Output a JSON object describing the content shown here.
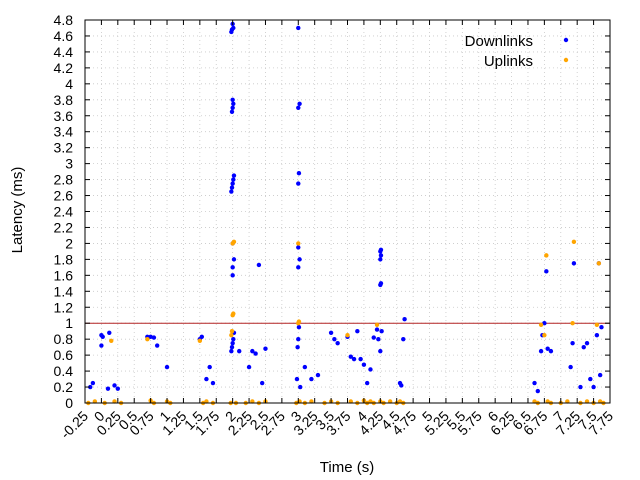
{
  "chart_data": {
    "type": "scatter",
    "title": "",
    "xlabel": "Time (s)",
    "ylabel": "Latency (ms)",
    "xlim": [
      -0.25,
      7.75
    ],
    "ylim": [
      0,
      4.8
    ],
    "x_ticks": [
      "-0.25",
      "0",
      "0.25",
      "0.5",
      "0.75",
      "1",
      "1.25",
      "1.5",
      "1.75",
      "2",
      "2.25",
      "2.5",
      "2.75",
      "3",
      "3.25",
      "3.5",
      "3.75",
      "4",
      "4.25",
      "4.5",
      "4.75",
      "5",
      "5.25",
      "5.5",
      "5.75",
      "6",
      "6.25",
      "6.5",
      "6.75",
      "7",
      "7.25",
      "7.5",
      "7.75"
    ],
    "y_ticks": [
      "0",
      "0.2",
      "0.4",
      "0.6",
      "0.8",
      "1",
      "1.2",
      "1.4",
      "1.6",
      "1.8",
      "2",
      "2.2",
      "2.4",
      "2.6",
      "2.8",
      "3",
      "3.2",
      "3.4",
      "3.6",
      "3.8",
      "4",
      "4.2",
      "4.4",
      "4.6",
      "4.8"
    ],
    "grid": true,
    "legend_position": "top-right",
    "reference_line": {
      "y": 1.0,
      "color": "#b22222"
    },
    "series": [
      {
        "name": "Downlinks",
        "color": "#0000ff",
        "points": [
          [
            -0.17,
            0.2
          ],
          [
            -0.13,
            0.25
          ],
          [
            0.0,
            0.72
          ],
          [
            0.0,
            0.85
          ],
          [
            0.02,
            0.83
          ],
          [
            0.1,
            0.18
          ],
          [
            0.12,
            0.88
          ],
          [
            0.2,
            0.22
          ],
          [
            0.25,
            0.18
          ],
          [
            0.7,
            0.83
          ],
          [
            0.75,
            0.83
          ],
          [
            0.8,
            0.82
          ],
          [
            0.85,
            0.72
          ],
          [
            1.0,
            0.45
          ],
          [
            1.5,
            0.8
          ],
          [
            1.53,
            0.83
          ],
          [
            1.6,
            0.3
          ],
          [
            1.65,
            0.45
          ],
          [
            1.7,
            0.25
          ],
          [
            1.98,
            0.65
          ],
          [
            1.99,
            0.7
          ],
          [
            2.0,
            0.75
          ],
          [
            2.01,
            0.8
          ],
          [
            2.02,
            0.88
          ],
          [
            2.0,
            1.6
          ],
          [
            2.0,
            1.7
          ],
          [
            2.02,
            1.8
          ],
          [
            2.0,
            2.0
          ],
          [
            1.98,
            2.65
          ],
          [
            1.99,
            2.7
          ],
          [
            2.0,
            2.75
          ],
          [
            2.01,
            2.8
          ],
          [
            2.02,
            2.85
          ],
          [
            1.99,
            3.65
          ],
          [
            2.0,
            3.7
          ],
          [
            2.01,
            3.75
          ],
          [
            2.0,
            3.8
          ],
          [
            1.98,
            4.65
          ],
          [
            1.99,
            4.68
          ],
          [
            2.01,
            4.7
          ],
          [
            2.0,
            4.75
          ],
          [
            2.1,
            0.65
          ],
          [
            2.25,
            0.45
          ],
          [
            2.3,
            0.65
          ],
          [
            2.35,
            0.62
          ],
          [
            2.4,
            1.73
          ],
          [
            2.45,
            0.25
          ],
          [
            2.5,
            0.68
          ],
          [
            2.98,
            0.3
          ],
          [
            2.99,
            0.7
          ],
          [
            3.0,
            0.8
          ],
          [
            3.01,
            0.95
          ],
          [
            3.0,
            1.7
          ],
          [
            3.02,
            1.8
          ],
          [
            3.0,
            1.95
          ],
          [
            3.0,
            2.75
          ],
          [
            3.01,
            2.88
          ],
          [
            3.0,
            3.7
          ],
          [
            3.02,
            3.75
          ],
          [
            3.0,
            4.7
          ],
          [
            3.03,
            0.2
          ],
          [
            3.1,
            0.45
          ],
          [
            3.2,
            0.3
          ],
          [
            3.3,
            0.35
          ],
          [
            3.5,
            0.88
          ],
          [
            3.55,
            0.8
          ],
          [
            3.6,
            0.75
          ],
          [
            3.75,
            0.83
          ],
          [
            3.8,
            0.58
          ],
          [
            3.85,
            0.55
          ],
          [
            3.9,
            0.9
          ],
          [
            3.95,
            0.55
          ],
          [
            4.0,
            0.48
          ],
          [
            4.05,
            0.25
          ],
          [
            4.1,
            0.42
          ],
          [
            4.15,
            0.82
          ],
          [
            4.2,
            0.92
          ],
          [
            4.22,
            0.8
          ],
          [
            4.25,
            0.65
          ],
          [
            4.27,
            0.9
          ],
          [
            4.25,
            1.48
          ],
          [
            4.26,
            1.5
          ],
          [
            4.25,
            1.8
          ],
          [
            4.26,
            1.85
          ],
          [
            4.25,
            1.9
          ],
          [
            4.26,
            1.92
          ],
          [
            4.55,
            0.25
          ],
          [
            4.57,
            0.22
          ],
          [
            4.6,
            0.8
          ],
          [
            4.62,
            1.05
          ],
          [
            6.6,
            0.25
          ],
          [
            6.65,
            0.15
          ],
          [
            6.7,
            0.65
          ],
          [
            6.72,
            0.85
          ],
          [
            6.75,
            1.0
          ],
          [
            6.78,
            1.65
          ],
          [
            6.8,
            0.68
          ],
          [
            6.85,
            0.65
          ],
          [
            7.15,
            0.45
          ],
          [
            7.18,
            0.75
          ],
          [
            7.2,
            1.75
          ],
          [
            7.3,
            0.2
          ],
          [
            7.35,
            0.7
          ],
          [
            7.4,
            0.75
          ],
          [
            7.45,
            0.3
          ],
          [
            7.5,
            0.2
          ],
          [
            7.55,
            0.85
          ],
          [
            7.58,
            1.75
          ],
          [
            7.6,
            0.35
          ],
          [
            7.62,
            0.95
          ]
        ]
      },
      {
        "name": "Uplinks",
        "color": "#ffa500",
        "points": [
          [
            -0.2,
            0.0
          ],
          [
            -0.1,
            0.02
          ],
          [
            0.05,
            0.0
          ],
          [
            0.15,
            0.78
          ],
          [
            0.2,
            0.02
          ],
          [
            0.3,
            0.0
          ],
          [
            0.7,
            0.8
          ],
          [
            0.75,
            0.03
          ],
          [
            0.8,
            0.0
          ],
          [
            1.0,
            0.02
          ],
          [
            1.05,
            0.0
          ],
          [
            1.5,
            0.78
          ],
          [
            1.55,
            0.0
          ],
          [
            1.6,
            0.02
          ],
          [
            1.7,
            0.0
          ],
          [
            1.97,
            0.0
          ],
          [
            1.98,
            0.85
          ],
          [
            1.99,
            0.9
          ],
          [
            2.0,
            1.1
          ],
          [
            2.01,
            1.12
          ],
          [
            2.0,
            2.0
          ],
          [
            2.02,
            2.02
          ],
          [
            2.05,
            0.0
          ],
          [
            2.2,
            0.0
          ],
          [
            2.3,
            0.02
          ],
          [
            2.4,
            0.0
          ],
          [
            2.5,
            0.02
          ],
          [
            2.97,
            0.0
          ],
          [
            3.0,
            1.0
          ],
          [
            3.01,
            1.02
          ],
          [
            3.0,
            2.0
          ],
          [
            3.02,
            0.02
          ],
          [
            3.1,
            0.0
          ],
          [
            3.2,
            0.02
          ],
          [
            3.4,
            0.0
          ],
          [
            3.5,
            0.02
          ],
          [
            3.6,
            0.0
          ],
          [
            3.75,
            0.85
          ],
          [
            3.8,
            0.02
          ],
          [
            3.9,
            0.0
          ],
          [
            4.0,
            0.03
          ],
          [
            4.05,
            0.0
          ],
          [
            4.1,
            0.02
          ],
          [
            4.15,
            0.0
          ],
          [
            4.2,
            0.98
          ],
          [
            4.25,
            0.02
          ],
          [
            4.3,
            0.0
          ],
          [
            4.4,
            0.02
          ],
          [
            4.5,
            0.0
          ],
          [
            4.55,
            0.02
          ],
          [
            4.6,
            0.0
          ],
          [
            6.6,
            0.02
          ],
          [
            6.65,
            0.0
          ],
          [
            6.7,
            0.98
          ],
          [
            6.75,
            0.85
          ],
          [
            6.78,
            1.85
          ],
          [
            6.8,
            0.02
          ],
          [
            6.85,
            0.0
          ],
          [
            7.0,
            0.0
          ],
          [
            7.1,
            0.02
          ],
          [
            7.18,
            1.0
          ],
          [
            7.2,
            2.02
          ],
          [
            7.3,
            0.0
          ],
          [
            7.4,
            0.02
          ],
          [
            7.5,
            0.0
          ],
          [
            7.55,
            0.98
          ],
          [
            7.58,
            1.75
          ],
          [
            7.6,
            0.02
          ],
          [
            7.65,
            0.0
          ]
        ]
      }
    ]
  }
}
